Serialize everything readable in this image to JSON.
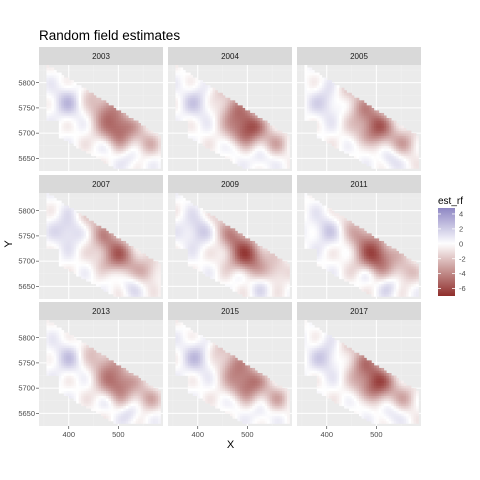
{
  "chart_data": {
    "type": "heatmap",
    "title": "Random field estimates",
    "xlabel": "X",
    "ylabel": "Y",
    "facet_labels": [
      "2003",
      "2004",
      "2005",
      "2007",
      "2009",
      "2011",
      "2013",
      "2015",
      "2017"
    ],
    "x_ticks": [
      400,
      500
    ],
    "y_ticks": [
      5650,
      5700,
      5750,
      5800
    ],
    "xlim": [
      340,
      590
    ],
    "ylim": [
      5625,
      5835
    ],
    "grid": true,
    "legend": {
      "title": "est_rf",
      "ticks": [
        4,
        2,
        0,
        -2,
        -4,
        -6
      ],
      "range": [
        -7,
        4.8
      ],
      "position": "right",
      "colors": {
        "high": "#8e87c4",
        "mid": "#ffffff",
        "low": "#8f2e2b"
      }
    },
    "field": {
      "description_components": [
        {
          "x": 500,
          "y": 5712,
          "value": -5.5,
          "spread": 28
        },
        {
          "x": 470,
          "y": 5752,
          "value": -2.5,
          "spread": 20
        },
        {
          "x": 400,
          "y": 5762,
          "value": 2.0,
          "spread": 22
        },
        {
          "x": 440,
          "y": 5782,
          "value": -1.5,
          "spread": 18
        },
        {
          "x": 560,
          "y": 5680,
          "value": -2.2,
          "spread": 18
        },
        {
          "x": 525,
          "y": 5652,
          "value": 1.5,
          "spread": 15
        },
        {
          "x": 480,
          "y": 5672,
          "value": 1.2,
          "spread": 14
        },
        {
          "x": 530,
          "y": 5745,
          "value": 1.8,
          "spread": 14
        }
      ]
    }
  },
  "colors": {
    "panel_bg": "#ebebeb",
    "strip_bg": "#d9d9d9",
    "grid_major": "#ffffff",
    "grid_minor": "#f2f2f2"
  }
}
